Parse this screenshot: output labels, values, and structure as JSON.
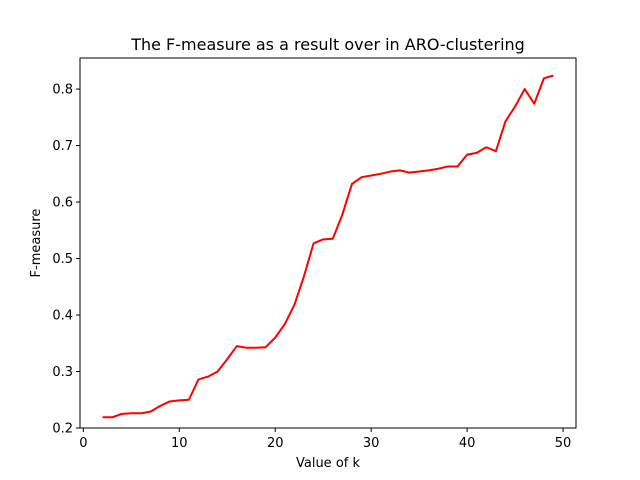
{
  "chart_data": {
    "type": "line",
    "title": "The F-measure as a result over in ARO-clustering",
    "xlabel": "Value of k",
    "ylabel": "F-measure",
    "xlim": [
      -0.35,
      51.35
    ],
    "ylim": [
      0.2,
      0.855
    ],
    "x_ticks": [
      0,
      10,
      20,
      30,
      40,
      50
    ],
    "y_ticks": [
      0.2,
      0.3,
      0.4,
      0.5,
      0.6,
      0.7,
      0.8
    ],
    "grid": false,
    "line_color": "#ff0000",
    "series": [
      {
        "x": [
          2,
          3,
          4,
          5,
          6,
          7,
          8,
          9,
          10,
          11,
          12,
          13,
          14,
          15,
          16,
          17,
          18,
          19,
          20,
          21,
          22,
          23,
          24,
          25,
          26,
          27,
          28,
          29,
          30,
          31,
          32,
          33,
          34,
          35,
          36,
          37,
          38,
          39,
          40,
          41,
          42,
          43,
          44,
          45,
          46,
          47,
          48,
          49
        ],
        "values": [
          0.219,
          0.219,
          0.225,
          0.226,
          0.226,
          0.229,
          0.239,
          0.247,
          0.249,
          0.25,
          0.286,
          0.291,
          0.3,
          0.322,
          0.345,
          0.342,
          0.342,
          0.343,
          0.36,
          0.384,
          0.418,
          0.469,
          0.527,
          0.534,
          0.535,
          0.578,
          0.632,
          0.644,
          0.647,
          0.65,
          0.654,
          0.656,
          0.652,
          0.654,
          0.656,
          0.659,
          0.663,
          0.663,
          0.684,
          0.687,
          0.697,
          0.69,
          0.743,
          0.769,
          0.8,
          0.774,
          0.819,
          0.824
        ]
      }
    ]
  }
}
